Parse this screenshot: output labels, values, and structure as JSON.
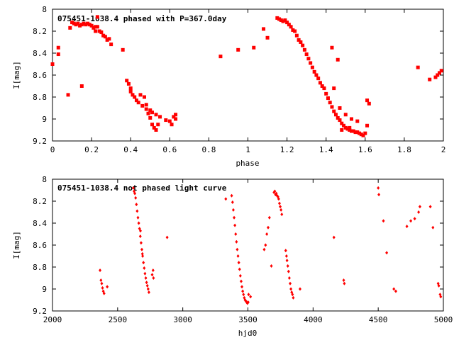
{
  "chart_data": [
    {
      "type": "scatter",
      "title": "075451-1038.4 phased with P=367.0day",
      "xlabel": "phase",
      "ylabel": "I[mag]",
      "xlim": [
        0,
        2
      ],
      "ylim": [
        9.2,
        8.0
      ],
      "y_inverted": true,
      "grid": false,
      "x_ticks": [
        "0",
        "0.2",
        "0.4",
        "0.6",
        "0.8",
        "1",
        "1.2",
        "1.4",
        "1.6",
        "1.8",
        "2"
      ],
      "y_ticks": [
        "8",
        "8.2",
        "8.4",
        "8.6",
        "8.8",
        "9",
        "9.2"
      ],
      "x_tick_values": [
        0,
        0.2,
        0.4,
        0.6,
        0.8,
        1.0,
        1.2,
        1.4,
        1.6,
        1.8,
        2.0
      ],
      "y_tick_values": [
        8.0,
        8.2,
        8.4,
        8.6,
        8.8,
        9.0,
        9.2
      ],
      "marker": "square",
      "color": "#ff0000",
      "points": [
        [
          0.0,
          8.5
        ],
        [
          0.03,
          8.41
        ],
        [
          0.03,
          8.35
        ],
        [
          0.08,
          8.78
        ],
        [
          0.09,
          8.17
        ],
        [
          0.1,
          8.12
        ],
        [
          0.11,
          8.13
        ],
        [
          0.12,
          8.14
        ],
        [
          0.13,
          8.13
        ],
        [
          0.14,
          8.15
        ],
        [
          0.15,
          8.14
        ],
        [
          0.16,
          8.13
        ],
        [
          0.17,
          8.14
        ],
        [
          0.18,
          8.13
        ],
        [
          0.19,
          8.14
        ],
        [
          0.2,
          8.15
        ],
        [
          0.21,
          8.17
        ],
        [
          0.22,
          8.16
        ],
        [
          0.22,
          8.2
        ],
        [
          0.23,
          8.07
        ],
        [
          0.23,
          8.16
        ],
        [
          0.24,
          8.2
        ],
        [
          0.25,
          8.21
        ],
        [
          0.26,
          8.24
        ],
        [
          0.27,
          8.25
        ],
        [
          0.28,
          8.28
        ],
        [
          0.29,
          8.27
        ],
        [
          0.3,
          8.32
        ],
        [
          0.15,
          8.7
        ],
        [
          0.36,
          8.37
        ],
        [
          0.38,
          8.65
        ],
        [
          0.39,
          8.68
        ],
        [
          0.4,
          8.72
        ],
        [
          0.4,
          8.75
        ],
        [
          0.41,
          8.78
        ],
        [
          0.42,
          8.8
        ],
        [
          0.43,
          8.83
        ],
        [
          0.44,
          8.85
        ],
        [
          0.45,
          8.78
        ],
        [
          0.46,
          8.88
        ],
        [
          0.47,
          8.8
        ],
        [
          0.48,
          8.87
        ],
        [
          0.48,
          8.91
        ],
        [
          0.49,
          8.95
        ],
        [
          0.5,
          8.92
        ],
        [
          0.5,
          8.99
        ],
        [
          0.51,
          9.05
        ],
        [
          0.51,
          8.94
        ],
        [
          0.52,
          9.08
        ],
        [
          0.53,
          9.1
        ],
        [
          0.53,
          8.96
        ],
        [
          0.54,
          9.05
        ],
        [
          0.55,
          8.98
        ],
        [
          0.58,
          9.01
        ],
        [
          0.6,
          9.02
        ],
        [
          0.61,
          9.05
        ],
        [
          0.62,
          8.98
        ],
        [
          0.63,
          9.0
        ],
        [
          0.63,
          8.96
        ],
        [
          0.86,
          8.43
        ],
        [
          0.95,
          8.37
        ],
        [
          1.03,
          8.35
        ],
        [
          1.08,
          8.18
        ],
        [
          1.1,
          8.26
        ],
        [
          1.15,
          8.08
        ],
        [
          1.16,
          8.09
        ],
        [
          1.17,
          8.1
        ],
        [
          1.18,
          8.11
        ],
        [
          1.19,
          8.1
        ],
        [
          1.2,
          8.12
        ],
        [
          1.21,
          8.14
        ],
        [
          1.22,
          8.16
        ],
        [
          1.23,
          8.19
        ],
        [
          1.24,
          8.2
        ],
        [
          1.25,
          8.24
        ],
        [
          1.26,
          8.28
        ],
        [
          1.27,
          8.3
        ],
        [
          1.28,
          8.33
        ],
        [
          1.29,
          8.37
        ],
        [
          1.3,
          8.41
        ],
        [
          1.31,
          8.45
        ],
        [
          1.32,
          8.49
        ],
        [
          1.33,
          8.53
        ],
        [
          1.34,
          8.57
        ],
        [
          1.35,
          8.6
        ],
        [
          1.36,
          8.63
        ],
        [
          1.37,
          8.67
        ],
        [
          1.38,
          8.7
        ],
        [
          1.39,
          8.72
        ],
        [
          1.4,
          8.77
        ],
        [
          1.41,
          8.81
        ],
        [
          1.42,
          8.85
        ],
        [
          1.43,
          8.89
        ],
        [
          1.44,
          8.93
        ],
        [
          1.45,
          8.96
        ],
        [
          1.46,
          8.99
        ],
        [
          1.47,
          9.01
        ],
        [
          1.48,
          9.04
        ],
        [
          1.49,
          9.06
        ],
        [
          1.5,
          9.08
        ],
        [
          1.51,
          9.09
        ],
        [
          1.52,
          9.1
        ],
        [
          1.53,
          9.11
        ],
        [
          1.54,
          9.11
        ],
        [
          1.55,
          9.12
        ],
        [
          1.56,
          9.12
        ],
        [
          1.57,
          9.13
        ],
        [
          1.58,
          9.14
        ],
        [
          1.59,
          9.15
        ],
        [
          1.6,
          9.13
        ],
        [
          1.61,
          9.06
        ],
        [
          1.61,
          8.83
        ],
        [
          1.62,
          8.86
        ],
        [
          1.43,
          8.35
        ],
        [
          1.46,
          8.46
        ],
        [
          1.44,
          8.72
        ],
        [
          1.47,
          8.9
        ],
        [
          1.5,
          8.96
        ],
        [
          1.53,
          9.0
        ],
        [
          1.56,
          9.02
        ],
        [
          1.48,
          9.1
        ],
        [
          1.52,
          9.08
        ],
        [
          1.87,
          8.53
        ],
        [
          1.93,
          8.64
        ],
        [
          1.96,
          8.62
        ],
        [
          1.97,
          8.6
        ],
        [
          1.98,
          8.58
        ],
        [
          1.99,
          8.56
        ]
      ]
    },
    {
      "type": "scatter",
      "title": "075451-1038.4 not phased light curve",
      "xlabel": "hjd0",
      "ylabel": "I[mag]",
      "xlim": [
        2000,
        5000
      ],
      "ylim": [
        9.2,
        8.0
      ],
      "y_inverted": true,
      "grid": false,
      "x_ticks": [
        "2000",
        "2500",
        "3000",
        "3500",
        "4000",
        "4500",
        "5000"
      ],
      "y_ticks": [
        "8",
        "8.2",
        "8.4",
        "8.6",
        "8.8",
        "9",
        "9.2"
      ],
      "x_tick_values": [
        2000,
        2500,
        3000,
        3500,
        4000,
        4500,
        5000
      ],
      "y_tick_values": [
        8.0,
        8.2,
        8.4,
        8.6,
        8.8,
        9.0,
        9.2
      ],
      "marker": "diamond",
      "color": "#ff0000",
      "points": [
        [
          2365,
          8.83
        ],
        [
          2372,
          8.92
        ],
        [
          2378,
          8.95
        ],
        [
          2384,
          8.99
        ],
        [
          2390,
          9.02
        ],
        [
          2396,
          9.04
        ],
        [
          2420,
          8.98
        ],
        [
          2620,
          8.08
        ],
        [
          2626,
          8.11
        ],
        [
          2632,
          8.13
        ],
        [
          2638,
          8.17
        ],
        [
          2644,
          8.23
        ],
        [
          2650,
          8.29
        ],
        [
          2656,
          8.35
        ],
        [
          2662,
          8.4
        ],
        [
          2668,
          8.45
        ],
        [
          2674,
          8.52
        ],
        [
          2680,
          8.58
        ],
        [
          2686,
          8.64
        ],
        [
          2692,
          8.7
        ],
        [
          2698,
          8.76
        ],
        [
          2704,
          8.81
        ],
        [
          2710,
          8.86
        ],
        [
          2716,
          8.9
        ],
        [
          2722,
          8.94
        ],
        [
          2728,
          8.97
        ],
        [
          2734,
          9.0
        ],
        [
          2740,
          9.03
        ],
        [
          2675,
          8.47
        ],
        [
          2690,
          8.68
        ],
        [
          2765,
          8.87
        ],
        [
          2772,
          8.83
        ],
        [
          2775,
          8.9
        ],
        [
          2880,
          8.53
        ],
        [
          3330,
          8.18
        ],
        [
          3375,
          8.15
        ],
        [
          3382,
          8.21
        ],
        [
          3388,
          8.28
        ],
        [
          3394,
          8.35
        ],
        [
          3400,
          8.42
        ],
        [
          3406,
          8.5
        ],
        [
          3412,
          8.57
        ],
        [
          3418,
          8.64
        ],
        [
          3424,
          8.7
        ],
        [
          3430,
          8.76
        ],
        [
          3436,
          8.82
        ],
        [
          3442,
          8.88
        ],
        [
          3448,
          8.93
        ],
        [
          3454,
          8.98
        ],
        [
          3460,
          9.02
        ],
        [
          3466,
          9.05
        ],
        [
          3472,
          9.08
        ],
        [
          3478,
          9.1
        ],
        [
          3484,
          9.11
        ],
        [
          3490,
          9.12
        ],
        [
          3496,
          9.13
        ],
        [
          3502,
          9.12
        ],
        [
          3520,
          9.07
        ],
        [
          3505,
          9.05
        ],
        [
          3625,
          8.64
        ],
        [
          3635,
          8.6
        ],
        [
          3645,
          8.5
        ],
        [
          3655,
          8.44
        ],
        [
          3665,
          8.35
        ],
        [
          3680,
          8.79
        ],
        [
          3700,
          8.12
        ],
        [
          3706,
          8.11
        ],
        [
          3712,
          8.14
        ],
        [
          3718,
          8.13
        ],
        [
          3724,
          8.15
        ],
        [
          3730,
          8.16
        ],
        [
          3736,
          8.18
        ],
        [
          3742,
          8.22
        ],
        [
          3748,
          8.25
        ],
        [
          3754,
          8.28
        ],
        [
          3760,
          8.32
        ],
        [
          3790,
          8.65
        ],
        [
          3796,
          8.7
        ],
        [
          3800,
          8.74
        ],
        [
          3806,
          8.79
        ],
        [
          3812,
          8.84
        ],
        [
          3818,
          8.9
        ],
        [
          3824,
          8.95
        ],
        [
          3830,
          9.0
        ],
        [
          3836,
          9.03
        ],
        [
          3842,
          9.05
        ],
        [
          3848,
          9.08
        ],
        [
          3900,
          9.0
        ],
        [
          4160,
          8.53
        ],
        [
          4235,
          8.92
        ],
        [
          4240,
          8.95
        ],
        [
          4500,
          8.08
        ],
        [
          4505,
          8.14
        ],
        [
          4540,
          8.38
        ],
        [
          4565,
          8.67
        ],
        [
          4620,
          9.0
        ],
        [
          4635,
          9.02
        ],
        [
          4720,
          8.43
        ],
        [
          4750,
          8.38
        ],
        [
          4780,
          8.36
        ],
        [
          4810,
          8.3
        ],
        [
          4820,
          8.25
        ],
        [
          4900,
          8.25
        ],
        [
          4920,
          8.44
        ],
        [
          4960,
          8.95
        ],
        [
          4965,
          8.97
        ],
        [
          4975,
          9.05
        ],
        [
          4980,
          9.07
        ]
      ]
    }
  ]
}
